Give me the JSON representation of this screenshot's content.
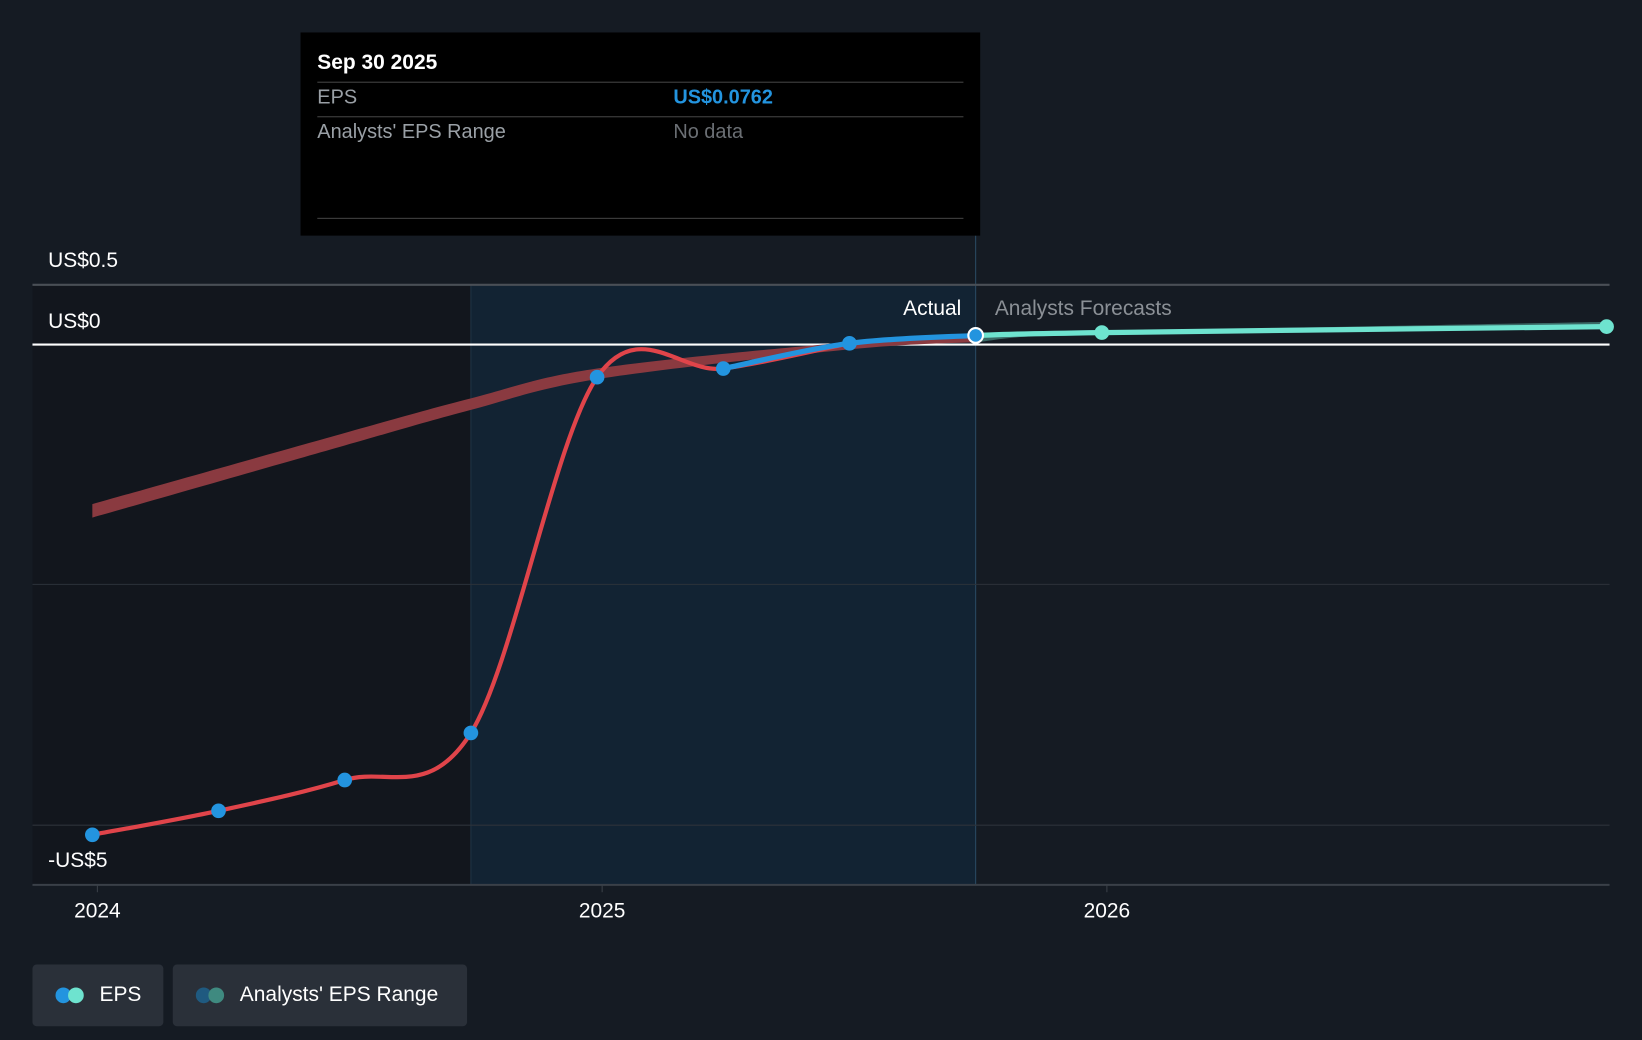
{
  "tooltip": {
    "date": "Sep 30 2025",
    "eps_label": "EPS",
    "eps_value": "US$0.0762",
    "range_label": "Analysts' EPS Range",
    "range_value": "No data"
  },
  "labels": {
    "actual": "Actual",
    "forecast": "Analysts Forecasts"
  },
  "legend": [
    {
      "label": "EPS"
    },
    {
      "label": "Analysts' EPS Range"
    }
  ],
  "colors": {
    "actual_line": "#e0444a",
    "eps_dot": "#2394df",
    "forecast": "#6ee3cf",
    "range": "#8a3a40",
    "bg": "#151b23"
  },
  "chart_data": {
    "type": "line",
    "title": "",
    "xlabel": "",
    "ylabel": "",
    "x_ticks": [
      "2024",
      "2025",
      "2026"
    ],
    "y_ticks": [
      {
        "value": 0.5,
        "label": "US$0.5"
      },
      {
        "value": 0,
        "label": "US$0"
      },
      {
        "value": -5,
        "label": "-US$5"
      }
    ],
    "series": [
      {
        "name": "EPS (Actual)",
        "x": [
          2023.99,
          2024.24,
          2024.49,
          2024.74,
          2024.99,
          2025.24,
          2025.49,
          2025.74
        ],
        "values": [
          -5.1,
          -4.85,
          -4.53,
          -4.04,
          -0.34,
          -0.25,
          0.01,
          0.0762
        ]
      },
      {
        "name": "EPS (Forecast)",
        "x": [
          2025.74,
          2025.99,
          2026.99
        ],
        "values": [
          0.0762,
          0.1,
          0.15
        ]
      },
      {
        "name": "Analysts' EPS Range",
        "x": [
          2023.99,
          2024.49,
          2024.74,
          2024.99,
          2025.49,
          2025.74,
          2025.99,
          2026.99
        ],
        "low": [
          -1.8,
          -1.05,
          -0.68,
          -0.36,
          -0.05,
          0.02,
          0.09,
          0.13
        ],
        "high": [
          -1.66,
          -0.92,
          -0.56,
          -0.25,
          0.02,
          0.08,
          0.11,
          0.19
        ]
      }
    ],
    "highlight": {
      "from": 2024.74,
      "to": 2025.74
    },
    "grid": true,
    "legend_position": "bottom-left"
  }
}
